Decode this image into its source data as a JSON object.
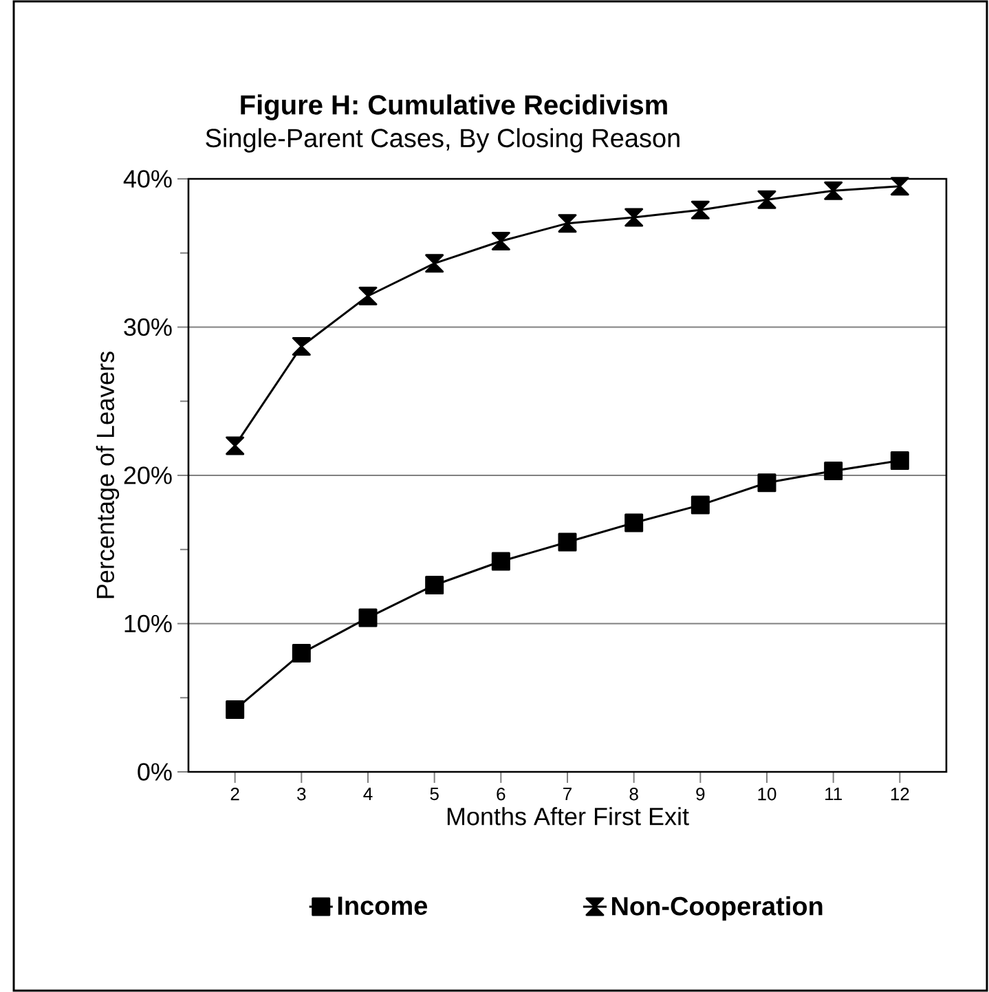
{
  "chart_data": {
    "type": "line",
    "title": "Figure H: Cumulative Recidivism",
    "subtitle": "Single-Parent Cases, By Closing Reason",
    "xlabel": "Months After First Exit",
    "ylabel": "Percentage of Leavers",
    "categories": [
      "2",
      "3",
      "4",
      "5",
      "6",
      "7",
      "8",
      "9",
      "10",
      "11",
      "12"
    ],
    "series": [
      {
        "name": "Income",
        "color": "#000000",
        "marker": "square",
        "values": [
          4.2,
          8.0,
          10.4,
          12.6,
          14.2,
          15.5,
          16.8,
          18.0,
          19.5,
          20.3,
          21.0
        ]
      },
      {
        "name": "Non-Cooperation",
        "color": "#000000",
        "marker": "diamond",
        "values": [
          22.0,
          28.7,
          32.1,
          34.3,
          35.8,
          37.0,
          37.4,
          37.9,
          38.6,
          39.2,
          39.5
        ]
      }
    ],
    "ylim": [
      0,
      40
    ],
    "yticks": [
      {
        "value": 0,
        "label": "0%"
      },
      {
        "value": 5,
        "label": null
      },
      {
        "value": 10,
        "label": "10%"
      },
      {
        "value": 15,
        "label": null
      },
      {
        "value": 20,
        "label": "20%"
      },
      {
        "value": 25,
        "label": null
      },
      {
        "value": 30,
        "label": "30%"
      },
      {
        "value": 35,
        "label": null
      },
      {
        "value": 40,
        "label": "40%"
      }
    ],
    "grid": "y",
    "legend": "bottom",
    "line_style": "solid"
  }
}
